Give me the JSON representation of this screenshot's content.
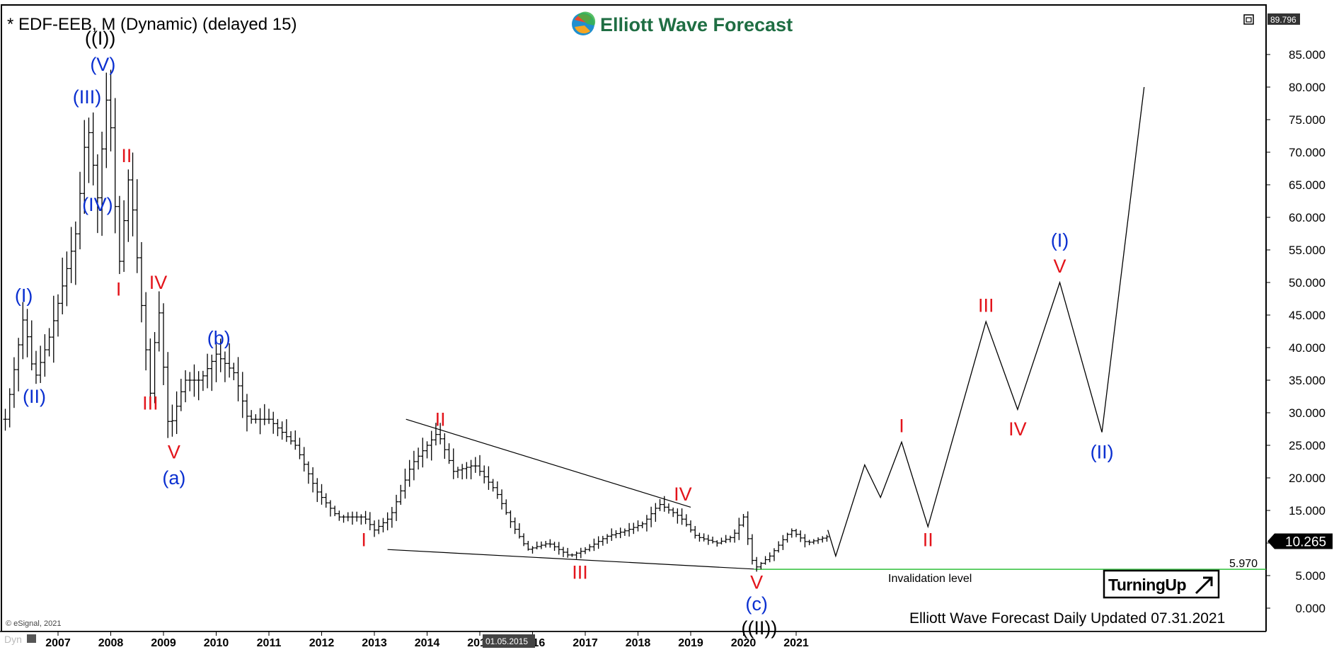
{
  "header": {
    "title": "* EDF-EEB, M (Dynamic) (delayed 15)",
    "brand": "Elliott Wave Forecast",
    "top_price_tag": "89.796"
  },
  "footer": {
    "updated_text": "Elliott Wave Forecast Daily Updated 07.31.2021",
    "copyright": "© eSignal, 2021",
    "dyn_label": "Dyn",
    "cursor_date": "01.05.2015",
    "turning_up": "TurningUp"
  },
  "annotations": {
    "invalidation_label": "Invalidation level",
    "invalidation_value": "5.970",
    "last_price": "10.265"
  },
  "colors": {
    "blue_label": "#0a2fd0",
    "red_label": "#e3141b",
    "invalidation_line": "#2fbf3a",
    "price_tag_bg": "#000000",
    "logo_green": "#1f6e43"
  },
  "chart_data": {
    "type": "ohlc-bar",
    "title": "* EDF-EEB, M (Dynamic) (delayed 15)",
    "ylim": [
      -2,
      90
    ],
    "y_ticks": [
      "0.000",
      "5.000",
      "10.000",
      "15.000",
      "20.000",
      "25.000",
      "30.000",
      "35.000",
      "40.000",
      "45.000",
      "50.000",
      "55.000",
      "60.000",
      "65.000",
      "70.000",
      "75.000",
      "80.000",
      "85.000"
    ],
    "x_ticks": [
      "2007",
      "2008",
      "2009",
      "2010",
      "2011",
      "2012",
      "2013",
      "2014",
      "2015",
      "2016",
      "2017",
      "2018",
      "2019",
      "2020",
      "2021"
    ],
    "price_path": [
      [
        2006.0,
        29
      ],
      [
        2006.35,
        45
      ],
      [
        2006.55,
        35
      ],
      [
        2006.85,
        42
      ],
      [
        2007.1,
        50
      ],
      [
        2007.35,
        58
      ],
      [
        2007.55,
        75
      ],
      [
        2007.75,
        63
      ],
      [
        2007.95,
        81
      ],
      [
        2008.15,
        52
      ],
      [
        2008.35,
        67
      ],
      [
        2008.6,
        45
      ],
      [
        2008.75,
        33
      ],
      [
        2008.9,
        47
      ],
      [
        2009.1,
        27
      ],
      [
        2009.4,
        35
      ],
      [
        2009.7,
        35
      ],
      [
        2010.0,
        39
      ],
      [
        2010.35,
        36
      ],
      [
        2010.6,
        29
      ],
      [
        2011.0,
        29
      ],
      [
        2011.5,
        25
      ],
      [
        2011.9,
        18
      ],
      [
        2012.3,
        14
      ],
      [
        2012.8,
        14
      ],
      [
        2013.0,
        12
      ],
      [
        2013.3,
        14
      ],
      [
        2013.7,
        22
      ],
      [
        2014.2,
        27
      ],
      [
        2014.5,
        21
      ],
      [
        2014.9,
        22
      ],
      [
        2015.3,
        18
      ],
      [
        2015.6,
        13
      ],
      [
        2015.9,
        9
      ],
      [
        2016.3,
        10
      ],
      [
        2016.7,
        8
      ],
      [
        2017.0,
        9
      ],
      [
        2017.4,
        11
      ],
      [
        2017.8,
        12
      ],
      [
        2018.1,
        13
      ],
      [
        2018.4,
        16
      ],
      [
        2018.8,
        14
      ],
      [
        2019.1,
        11
      ],
      [
        2019.5,
        10
      ],
      [
        2019.8,
        11
      ],
      [
        2020.0,
        14
      ],
      [
        2020.2,
        6
      ],
      [
        2020.5,
        8
      ],
      [
        2020.9,
        12
      ],
      [
        2021.2,
        10
      ],
      [
        2021.6,
        11
      ]
    ],
    "projection_path": [
      [
        2021.6,
        12
      ],
      [
        2021.75,
        8
      ],
      [
        2022.3,
        22
      ],
      [
        2022.6,
        17
      ],
      [
        2023.0,
        25.5
      ],
      [
        2023.5,
        12.5
      ],
      [
        2024.6,
        44
      ],
      [
        2025.2,
        30.5
      ],
      [
        2026.0,
        50
      ],
      [
        2026.8,
        27
      ],
      [
        2027.6,
        80
      ]
    ],
    "trendlines": [
      {
        "name": "upper",
        "points": [
          [
            2013.6,
            29
          ],
          [
            2019.0,
            15.5
          ]
        ]
      },
      {
        "name": "lower",
        "points": [
          [
            2013.25,
            9
          ],
          [
            2020.2,
            6
          ]
        ]
      }
    ],
    "invalidation": {
      "y": 5.97,
      "x_start": 2020.2
    },
    "last_price": 10.265,
    "wave_labels": [
      {
        "text": "((I))",
        "x": 2007.8,
        "y": 86.5,
        "color": "black"
      },
      {
        "text": "(V)",
        "x": 2007.85,
        "y": 82.5,
        "color": "blue"
      },
      {
        "text": "(III)",
        "x": 2007.55,
        "y": 77.5,
        "color": "blue"
      },
      {
        "text": "(IV)",
        "x": 2007.75,
        "y": 61.0,
        "color": "blue"
      },
      {
        "text": "(I)",
        "x": 2006.35,
        "y": 47.0,
        "color": "blue"
      },
      {
        "text": "(II)",
        "x": 2006.55,
        "y": 31.5,
        "color": "blue"
      },
      {
        "text": "II",
        "x": 2008.3,
        "y": 68.5,
        "color": "red"
      },
      {
        "text": "I",
        "x": 2008.15,
        "y": 48.0,
        "color": "red"
      },
      {
        "text": "IV",
        "x": 2008.9,
        "y": 49.0,
        "color": "red"
      },
      {
        "text": "III",
        "x": 2008.75,
        "y": 30.5,
        "color": "red"
      },
      {
        "text": "V",
        "x": 2009.2,
        "y": 23.0,
        "color": "red"
      },
      {
        "text": "(a)",
        "x": 2009.2,
        "y": 19.0,
        "color": "blue"
      },
      {
        "text": "(b)",
        "x": 2010.05,
        "y": 40.5,
        "color": "blue"
      },
      {
        "text": "I",
        "x": 2012.8,
        "y": 9.5,
        "color": "red"
      },
      {
        "text": "II",
        "x": 2014.25,
        "y": 28.0,
        "color": "red"
      },
      {
        "text": "III",
        "x": 2016.9,
        "y": 4.5,
        "color": "red"
      },
      {
        "text": "IV",
        "x": 2018.85,
        "y": 16.5,
        "color": "red"
      },
      {
        "text": "V",
        "x": 2020.25,
        "y": 3.0,
        "color": "red"
      },
      {
        "text": "(c)",
        "x": 2020.25,
        "y": -0.3,
        "color": "blue"
      },
      {
        "text": "((II))",
        "x": 2020.3,
        "y": -4.0,
        "color": "black"
      },
      {
        "text": "I",
        "x": 2023.0,
        "y": 27.0,
        "color": "red"
      },
      {
        "text": "II",
        "x": 2023.5,
        "y": 9.5,
        "color": "red"
      },
      {
        "text": "III",
        "x": 2024.6,
        "y": 45.5,
        "color": "red"
      },
      {
        "text": "IV",
        "x": 2025.2,
        "y": 26.5,
        "color": "red"
      },
      {
        "text": "V",
        "x": 2026.0,
        "y": 51.5,
        "color": "red"
      },
      {
        "text": "(I)",
        "x": 2026.0,
        "y": 55.5,
        "color": "blue"
      },
      {
        "text": "(II)",
        "x": 2026.8,
        "y": 23.0,
        "color": "blue"
      }
    ]
  }
}
